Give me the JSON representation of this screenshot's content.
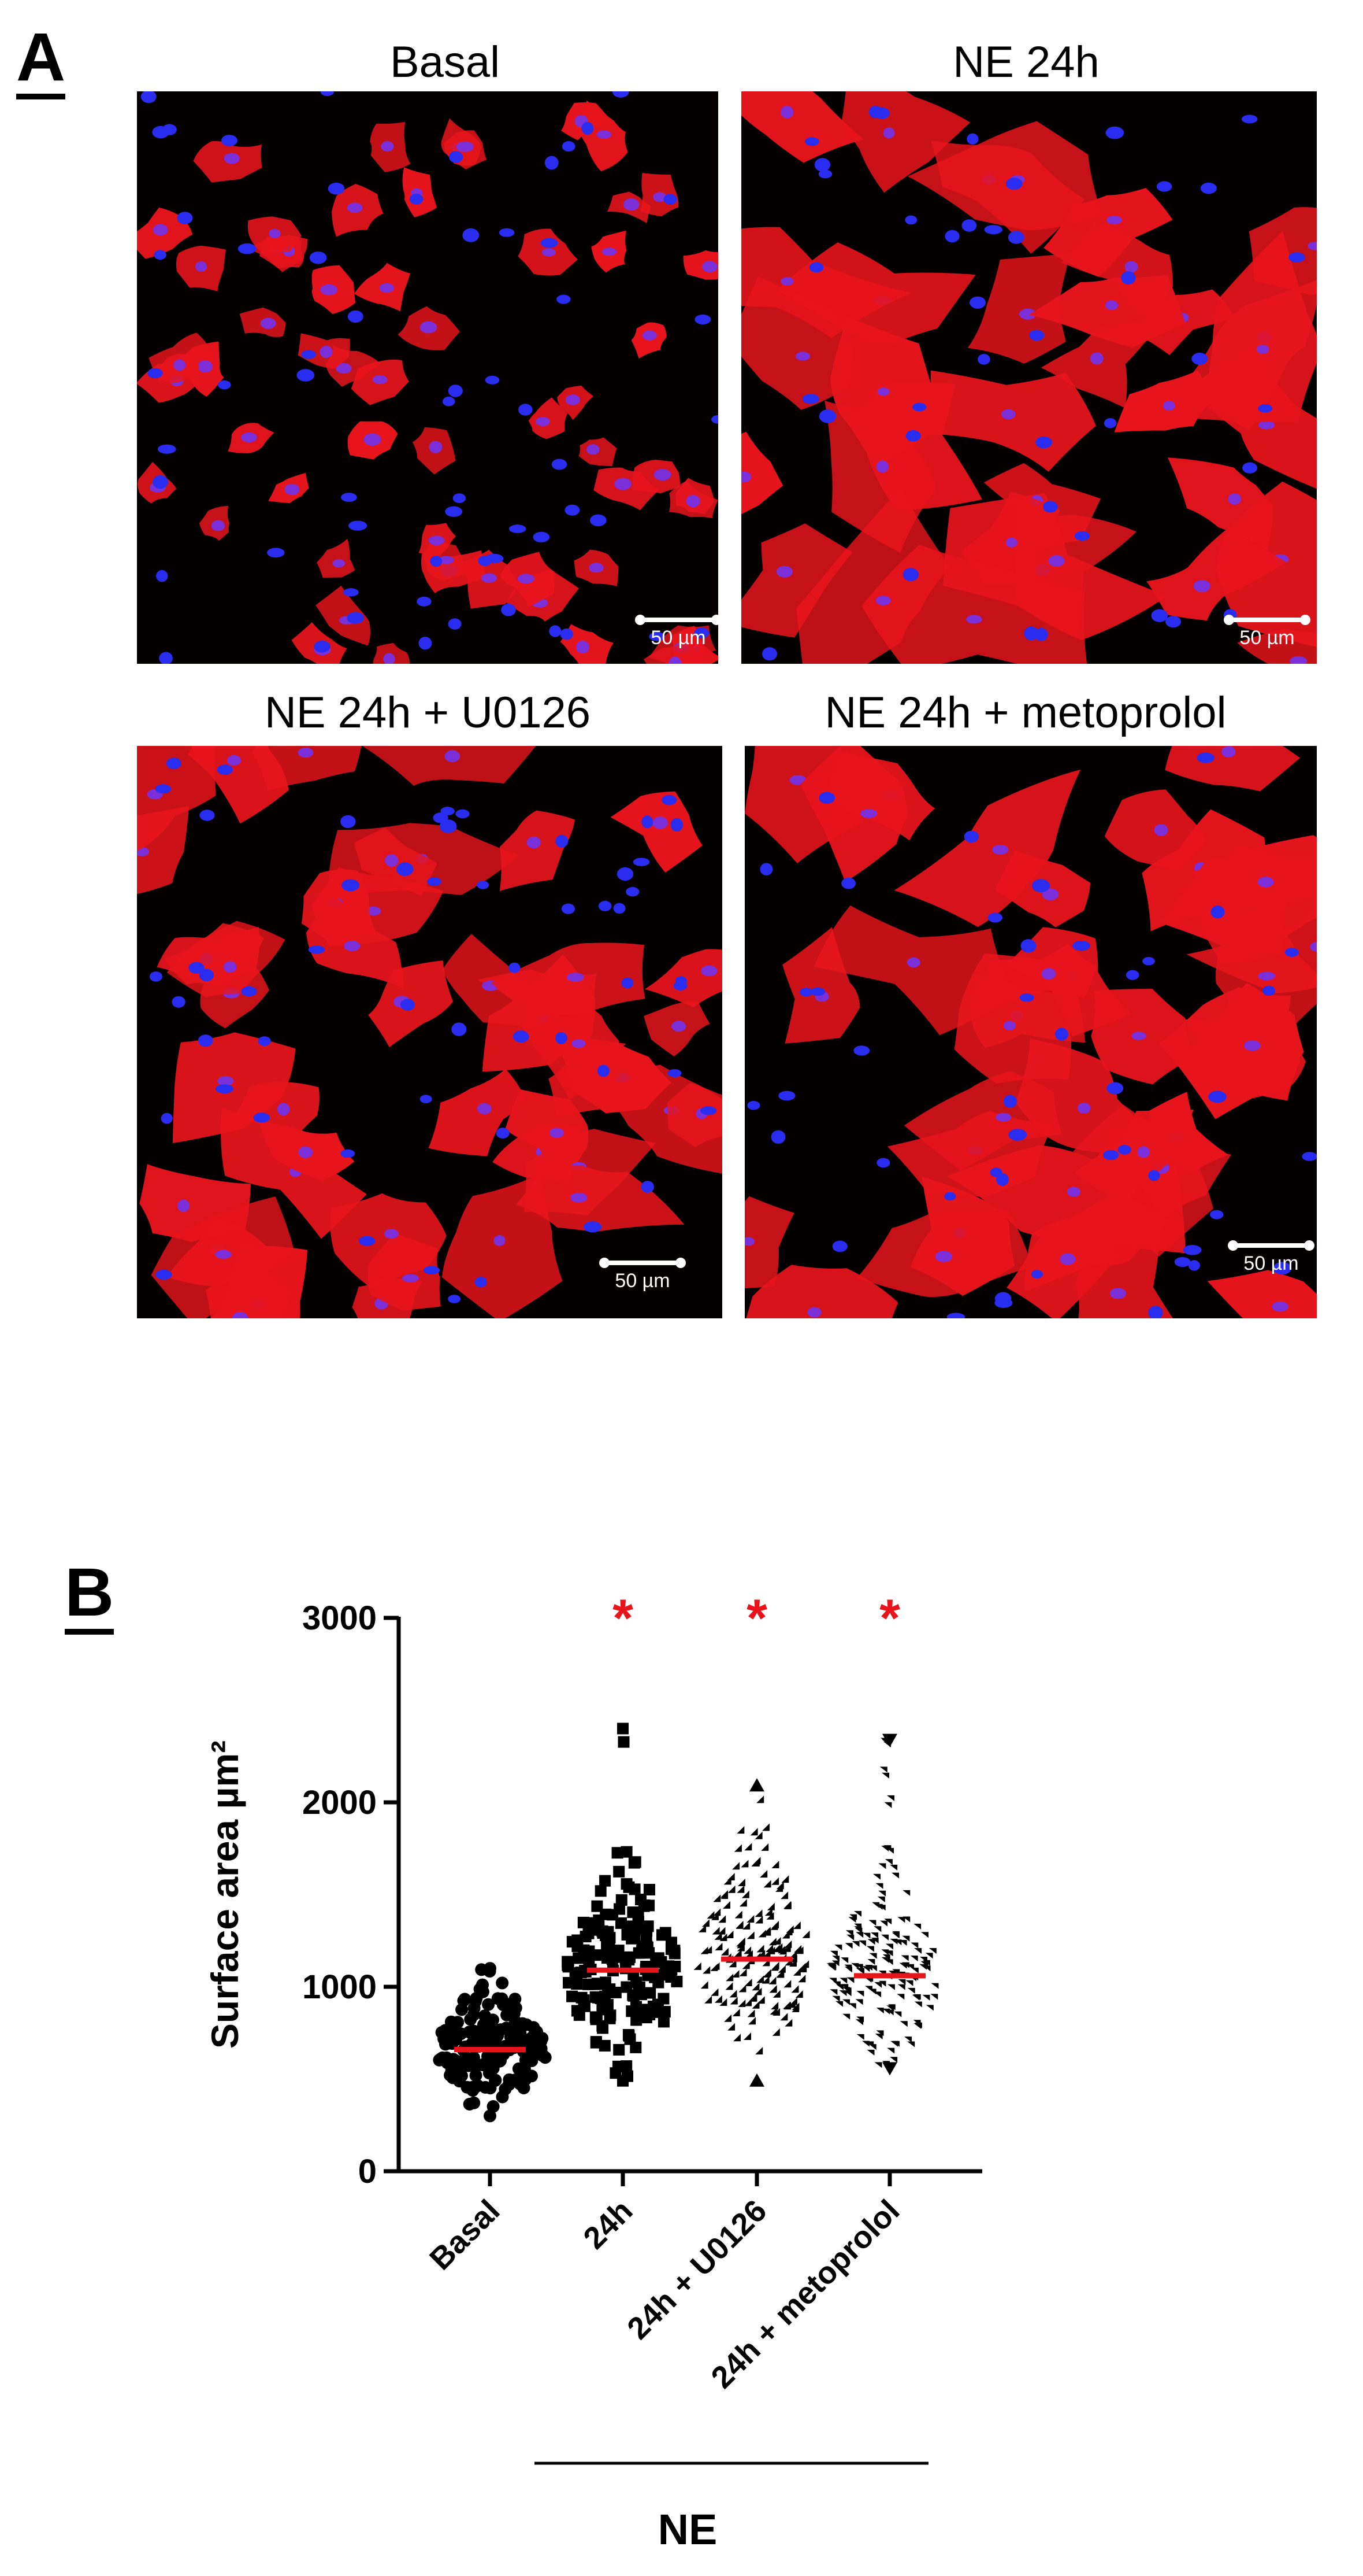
{
  "panel_a": {
    "letter": "A",
    "images": [
      {
        "title": "Basal",
        "scale_label": "50 µm"
      },
      {
        "title": "NE 24h",
        "scale_label": "50 µm"
      },
      {
        "title": "NE 24h + U0126",
        "scale_label": "50 µm"
      },
      {
        "title": "NE 24h + metoprolol",
        "scale_label": "50 µm"
      }
    ],
    "colors": {
      "cell": "#e8141c",
      "nucleus": "#2a2cf0",
      "background": "#050000"
    }
  },
  "panel_b": {
    "letter": "B",
    "group_label": "NE",
    "significance_mark": "*"
  },
  "chart_data": {
    "type": "scatter",
    "subtype": "dot plot with mean line",
    "ylabel": "Surface area µm²",
    "ylim": [
      0,
      3000
    ],
    "yticks": [
      0,
      1000,
      2000,
      3000
    ],
    "categories": [
      "Basal",
      "24h",
      "24h + U0126",
      "24h + metoprolol"
    ],
    "series": [
      {
        "category": "Basal",
        "marker": "circle",
        "mean": 660,
        "min": 300,
        "max": 1100,
        "significant": false
      },
      {
        "category": "24h",
        "marker": "square",
        "mean": 1090,
        "min": 490,
        "max": 2400,
        "significant": true
      },
      {
        "category": "24h + U0126",
        "marker": "triangle-up",
        "mean": 1150,
        "min": 490,
        "max": 2090,
        "significant": true
      },
      {
        "category": "24h + metoprolol",
        "marker": "triangle-down",
        "mean": 1060,
        "min": 560,
        "max": 2340,
        "significant": true
      }
    ],
    "mean_line_color": "#e8141c",
    "point_color": "#000000",
    "star_color": "#e8141c"
  }
}
